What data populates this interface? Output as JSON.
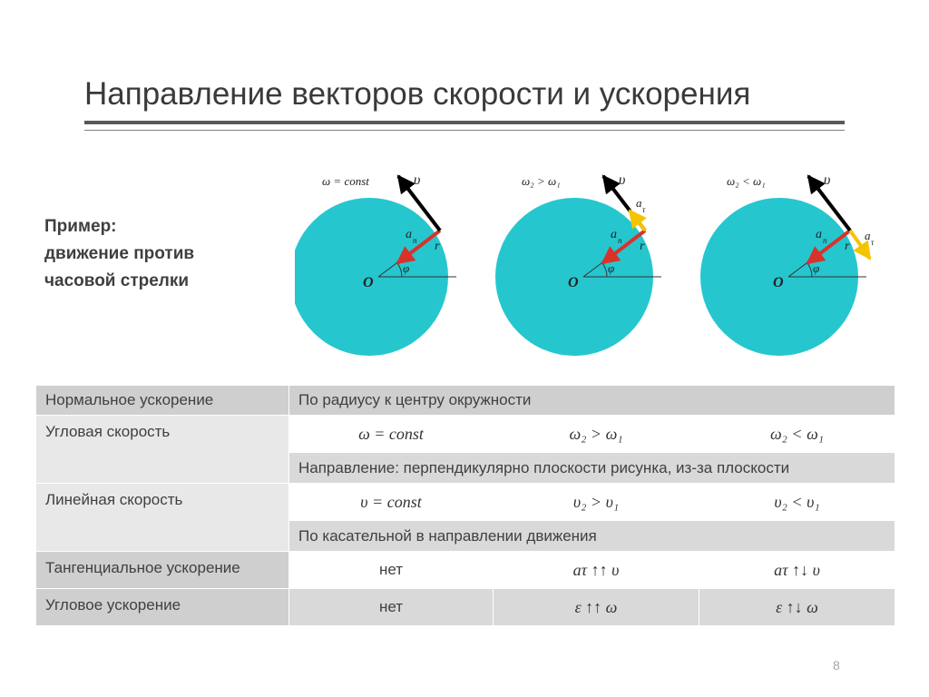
{
  "title": "Направление векторов скорости и ускорения",
  "example": [
    "Пример:",
    "движение против",
    "часовой стрелки"
  ],
  "figures": [
    {
      "condition": "ω = const",
      "tangential": "none"
    },
    {
      "condition": "ω₂ > ω₁",
      "tangential": "along"
    },
    {
      "condition": "ω₂ < ω₁",
      "tangential": "opposite"
    }
  ],
  "figure_labels": {
    "velocity": "υ",
    "normal": "a",
    "normal_sub": "n",
    "radius": "r",
    "tangential": "a",
    "tangential_sub": "τ",
    "origin": "O",
    "angle": "φ"
  },
  "colors": {
    "disk": "#26c6cf",
    "velocity": "#000000",
    "normal": "#d9322b",
    "tangential": "#f5c400"
  },
  "table": {
    "normal_acc": {
      "label": "Нормальное ускорение",
      "value": "По радиусу к центру окружности"
    },
    "angular_vel": {
      "label": "Угловая скорость",
      "c1": "ω = const",
      "c2": "ω₂ > ω₁",
      "c3": "ω₂ < ω₁",
      "dir": "Направление: перпендикулярно плоскости рисунка, из-за плоскости"
    },
    "linear_vel": {
      "label": "Линейная скорость",
      "c1": "υ = const",
      "c2": "υ₂ > υ₁",
      "c3": "υ₂ < υ₁",
      "dir": "По касательной в направлении движения"
    },
    "tangential_acc": {
      "label": "Тангенциальное ускорение",
      "c1": "нет",
      "c2": "aτ ↑↑ υ",
      "c3": "aτ ↑↓ υ"
    },
    "angular_acc": {
      "label": "Угловое ускорение",
      "c1": "нет",
      "c2": "ε ↑↑ ω",
      "c3": "ε ↑↓ ω"
    }
  },
  "page_number": "8"
}
